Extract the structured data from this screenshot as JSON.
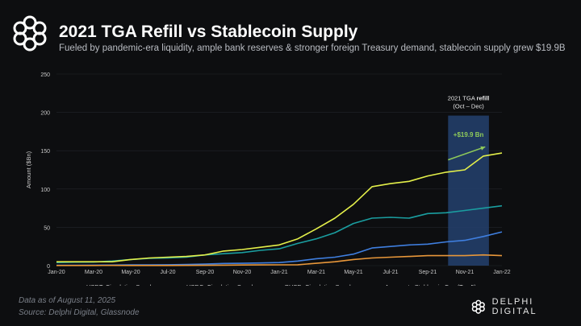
{
  "header": {
    "title": "2021 TGA Refill vs Stablecoin Supply",
    "subtitle": "Fueled by pandemic-era liquidity, ample bank reserves & stronger foreign Treasury demand, stablecoin supply grew $19.9B"
  },
  "footer": {
    "date": "Data as of August 11, 2025",
    "source": "Source: Delphi Digital, Glassnode",
    "brand": "DELPHI DIGITAL"
  },
  "chart_data": {
    "type": "line",
    "ylabel": "Amount ($Bn)",
    "xlabel": "",
    "ylim": [
      0,
      250
    ],
    "yticks": [
      0,
      50,
      100,
      150,
      200,
      250
    ],
    "x": [
      "Jan-20",
      "Feb-20",
      "Mar-20",
      "Apr-20",
      "May-20",
      "Jun-20",
      "Jul-20",
      "Aug-20",
      "Sep-20",
      "Oct-20",
      "Nov-20",
      "Dec-20",
      "Jan-21",
      "Feb-21",
      "Mar-21",
      "Apr-21",
      "May-21",
      "Jun-21",
      "Jul-21",
      "Aug-21",
      "Sep-21",
      "Oct-21",
      "Nov-21",
      "Dec-21",
      "Jan-22"
    ],
    "xticks": [
      "Jan-20",
      "Mar-20",
      "May-20",
      "Jul-20",
      "Sep-20",
      "Nov-20",
      "Jan-21",
      "Mar-21",
      "May-21",
      "Jul-21",
      "Sep-21",
      "Nov-21",
      "Jan-22"
    ],
    "series": [
      {
        "name": "USDT: Circulating Supply",
        "color": "#1a9ea0",
        "values": [
          4,
          4.5,
          4.6,
          6,
          8,
          9.5,
          10,
          11,
          14,
          15.5,
          17,
          20,
          22,
          29,
          35,
          43,
          55,
          62,
          63,
          62,
          68,
          69,
          72,
          75,
          78
        ]
      },
      {
        "name": "USDC: Circulating Supply",
        "color": "#3f7fe0",
        "values": [
          0.5,
          0.5,
          0.6,
          0.7,
          1,
          1,
          1.2,
          1.5,
          2,
          2.8,
          3,
          3.5,
          4,
          6,
          9,
          11,
          15,
          23,
          25,
          27,
          28,
          31,
          33,
          38,
          44
        ]
      },
      {
        "name": "BUSD: Circulating Supply",
        "color": "#e8973a",
        "values": [
          0.2,
          0.2,
          0.2,
          0.3,
          0.2,
          0.2,
          0.2,
          0.3,
          0.4,
          0.6,
          0.8,
          0.9,
          1,
          1.2,
          3,
          5,
          8,
          10,
          11,
          12,
          13,
          13,
          13,
          14,
          13
        ]
      },
      {
        "name": "Aggregate Stablecoin Cap (Top 5)",
        "color": "#e4f04a",
        "values": [
          5,
          5,
          5,
          5,
          8,
          10,
          11,
          12,
          14,
          19,
          21,
          24,
          27,
          35,
          48,
          62,
          80,
          103,
          107,
          110,
          117,
          122,
          125,
          143,
          147
        ]
      }
    ],
    "highlight": {
      "label_line1": "2021 TGA",
      "label_bold": "refill",
      "label_line2": "(Oct – Dec)",
      "start_index": 21.1,
      "end_index": 23.3,
      "color": "#24416e"
    },
    "annotation": {
      "text": "+$19.9 Bn",
      "color": "#8fcb5a",
      "from": [
        21.1,
        138
      ],
      "to": [
        23.1,
        155
      ]
    },
    "legend": "bottom"
  }
}
